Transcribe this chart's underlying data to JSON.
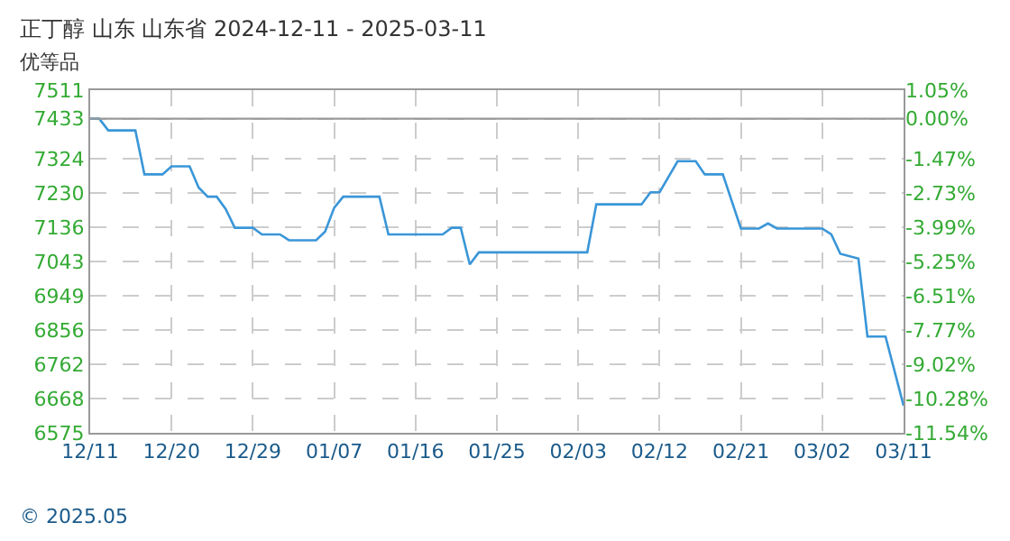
{
  "chart_data": {
    "type": "line",
    "title": "正丁醇 山东 山东省 2024-12-11 - 2025-03-11",
    "subtitle": "优等品",
    "x": [
      "2024-12-11",
      "2024-12-12",
      "2024-12-13",
      "2024-12-16",
      "2024-12-17",
      "2024-12-19",
      "2024-12-20",
      "2024-12-22",
      "2024-12-23",
      "2024-12-24",
      "2024-12-25",
      "2024-12-26",
      "2024-12-27",
      "2024-12-29",
      "2024-12-30",
      "2025-01-01",
      "2025-01-02",
      "2025-01-05",
      "2025-01-06",
      "2025-01-07",
      "2025-01-08",
      "2025-01-12",
      "2025-01-13",
      "2025-01-19",
      "2025-01-20",
      "2025-01-21",
      "2025-01-22",
      "2025-01-23",
      "2025-02-04",
      "2025-02-05",
      "2025-02-10",
      "2025-02-11",
      "2025-02-12",
      "2025-02-14",
      "2025-02-16",
      "2025-02-17",
      "2025-02-19",
      "2025-02-21",
      "2025-02-23",
      "2025-02-24",
      "2025-02-25",
      "2025-03-02",
      "2025-03-03",
      "2025-03-04",
      "2025-03-06",
      "2025-03-07",
      "2025-03-09",
      "2025-03-11"
    ],
    "series": [
      {
        "color": "#3a96d8",
        "values": [
          7433,
          7433,
          7401,
          7401,
          7281,
          7281,
          7303,
          7303,
          7245,
          7220,
          7220,
          7186,
          7135,
          7135,
          7117,
          7117,
          7101,
          7101,
          7125,
          7190,
          7220,
          7220,
          7117,
          7117,
          7135,
          7135,
          7035,
          7068,
          7068,
          7199,
          7199,
          7232,
          7232,
          7317,
          7317,
          7281,
          7281,
          7133,
          7133,
          7147,
          7133,
          7133,
          7117,
          7064,
          7051,
          6838,
          6838,
          6649
        ]
      }
    ],
    "xlim": [
      "2024-12-11",
      "2025-03-11"
    ],
    "xticks": [
      {
        "value": "2024-12-11",
        "label": "12/11"
      },
      {
        "value": "2024-12-20",
        "label": "12/20"
      },
      {
        "value": "2024-12-29",
        "label": "12/29"
      },
      {
        "value": "2025-01-07",
        "label": "01/07"
      },
      {
        "value": "2025-01-16",
        "label": "01/16"
      },
      {
        "value": "2025-01-25",
        "label": "01/25"
      },
      {
        "value": "2025-02-03",
        "label": "02/03"
      },
      {
        "value": "2025-02-12",
        "label": "02/12"
      },
      {
        "value": "2025-02-21",
        "label": "02/21"
      },
      {
        "value": "2025-03-02",
        "label": "03/02"
      },
      {
        "value": "2025-03-11",
        "label": "03/11"
      }
    ],
    "ylim": [
      6575,
      7511
    ],
    "yticks": [
      6575,
      6668,
      6762,
      6856,
      6949,
      7043,
      7136,
      7230,
      7324,
      7433,
      7511
    ],
    "y2lim": [
      -11.54,
      1.05
    ],
    "y2ticks": [
      {
        "value": -11.54,
        "label": "-11.54%"
      },
      {
        "value": -10.28,
        "label": "-10.28%"
      },
      {
        "value": -9.02,
        "label": "-9.02%"
      },
      {
        "value": -7.77,
        "label": "-7.77%"
      },
      {
        "value": -6.51,
        "label": "-6.51%"
      },
      {
        "value": -5.25,
        "label": "-5.25%"
      },
      {
        "value": -3.99,
        "label": "-3.99%"
      },
      {
        "value": -2.73,
        "label": "-2.73%"
      },
      {
        "value": -1.47,
        "label": "-1.47%"
      },
      {
        "value": 0,
        "label": "0.00%"
      },
      {
        "value": 1.05,
        "label": "1.05%"
      }
    ],
    "ref_lines": [
      {
        "axis": "y",
        "value": 7433,
        "color": "#999999",
        "line_style": "solid"
      }
    ],
    "grid": true,
    "legend": false,
    "marker": "none",
    "line_style": "solid",
    "annotations": [
      "© 2025.05"
    ]
  }
}
